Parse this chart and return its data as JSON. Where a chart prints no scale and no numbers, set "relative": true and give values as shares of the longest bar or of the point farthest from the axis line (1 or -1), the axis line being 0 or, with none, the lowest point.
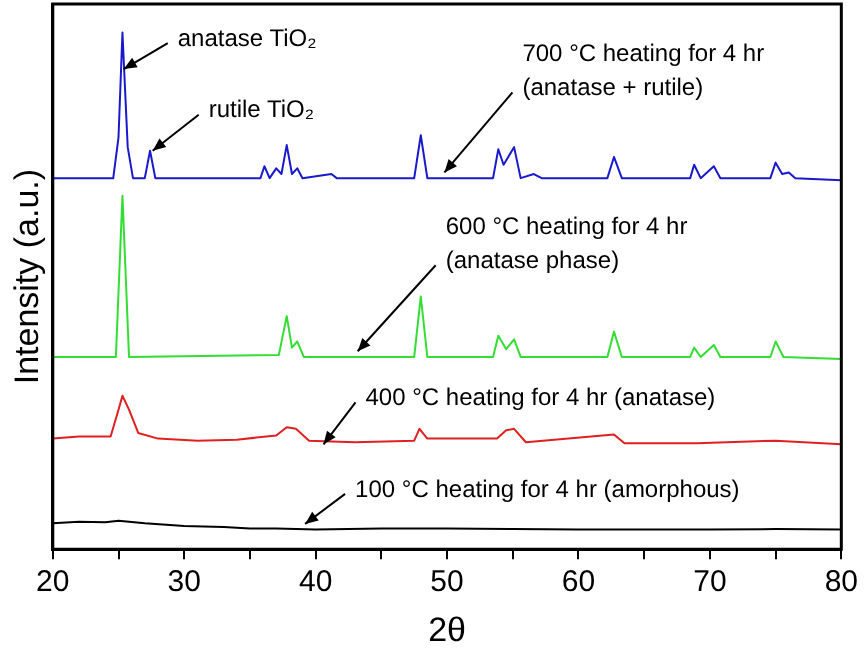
{
  "chart_data": {
    "type": "line",
    "relative": true,
    "xlabel": "2θ",
    "ylabel": "Intensity (a.u.)",
    "xlim": [
      20,
      80
    ],
    "xticks": [
      20,
      {
        "value": 25,
        "label": null
      },
      30,
      {
        "value": 35,
        "label": null
      },
      40,
      {
        "value": 45,
        "label": null
      },
      50,
      {
        "value": 55,
        "label": null
      },
      60,
      {
        "value": 65,
        "label": null
      },
      70,
      {
        "value": 75,
        "label": null
      },
      80
    ],
    "tick_labels": "x",
    "grid": false,
    "legend": false,
    "marker": "none",
    "line_style": "solid",
    "series": [
      {
        "color": "#1a1acc",
        "x": [
          20,
          24.6,
          25.0,
          25.3,
          25.7,
          26.1,
          27.0,
          27.4,
          27.8,
          35.8,
          36.1,
          36.5,
          37.0,
          37.4,
          37.8,
          38.2,
          38.6,
          39.0,
          41.2,
          41.6,
          47.5,
          48.0,
          48.5,
          53.5,
          53.9,
          54.3,
          55.1,
          55.6,
          56.6,
          57.2,
          62.2,
          62.7,
          63.3,
          68.5,
          68.8,
          69.3,
          70.3,
          70.8,
          74.6,
          75.0,
          75.5,
          76.0,
          76.5,
          80
        ],
        "values": [
          0.718,
          0.718,
          0.797,
          1.0,
          0.778,
          0.718,
          0.718,
          0.771,
          0.718,
          0.718,
          0.741,
          0.718,
          0.737,
          0.726,
          0.782,
          0.726,
          0.737,
          0.718,
          0.726,
          0.718,
          0.718,
          0.801,
          0.718,
          0.718,
          0.774,
          0.744,
          0.778,
          0.718,
          0.726,
          0.718,
          0.718,
          0.759,
          0.718,
          0.718,
          0.744,
          0.718,
          0.741,
          0.718,
          0.718,
          0.748,
          0.726,
          0.729,
          0.718,
          0.714
        ]
      },
      {
        "color": "#33dd33",
        "x": [
          20,
          24.8,
          25.3,
          25.8,
          37.2,
          37.8,
          38.2,
          38.6,
          39.1,
          47.5,
          48.0,
          48.5,
          53.5,
          53.9,
          54.5,
          55.1,
          55.6,
          62.2,
          62.7,
          63.3,
          68.5,
          68.8,
          69.3,
          70.3,
          70.8,
          74.6,
          75.0,
          75.6,
          80
        ],
        "values": [
          0.372,
          0.372,
          0.684,
          0.372,
          0.376,
          0.451,
          0.39,
          0.402,
          0.372,
          0.372,
          0.489,
          0.372,
          0.372,
          0.413,
          0.387,
          0.406,
          0.372,
          0.372,
          0.421,
          0.372,
          0.372,
          0.39,
          0.372,
          0.395,
          0.372,
          0.372,
          0.402,
          0.372,
          0.368
        ]
      },
      {
        "color": "#e02020",
        "x": [
          20,
          22,
          24.4,
          25.0,
          25.3,
          25.8,
          26.5,
          28,
          31,
          34,
          37,
          37.8,
          38.5,
          39.5,
          43,
          47.5,
          47.9,
          48.5,
          53.8,
          54.5,
          55.1,
          56,
          62.7,
          63.5,
          69,
          75,
          80
        ],
        "values": [
          0.214,
          0.218,
          0.218,
          0.27,
          0.297,
          0.27,
          0.225,
          0.214,
          0.21,
          0.212,
          0.22,
          0.236,
          0.233,
          0.21,
          0.207,
          0.21,
          0.233,
          0.214,
          0.214,
          0.23,
          0.233,
          0.207,
          0.222,
          0.205,
          0.205,
          0.21,
          0.203
        ]
      },
      {
        "color": "#000000",
        "x": [
          20,
          22,
          24,
          25,
          27,
          30,
          33,
          35,
          37,
          40,
          45,
          50,
          55,
          60,
          65,
          70,
          75,
          80
        ],
        "values": [
          0.05,
          0.053,
          0.052,
          0.055,
          0.05,
          0.045,
          0.043,
          0.04,
          0.04,
          0.038,
          0.04,
          0.04,
          0.039,
          0.038,
          0.038,
          0.038,
          0.039,
          0.038
        ]
      }
    ],
    "annotations": [
      {
        "text": "anatase TiO₂",
        "x": 25.4,
        "y": 0.929
      },
      {
        "text": "rutile TiO₂",
        "x": 27.6,
        "y": 0.771
      },
      {
        "text": "700 °C heating for 4 hr\n(anatase + rutile)",
        "x": 49.8,
        "y": 0.729
      },
      {
        "text": "600 °C heating for 4 hr\n(anatase phase)",
        "x": 43.2,
        "y": 0.383
      },
      {
        "text": "400 °C heating for 4 hr (anatase)",
        "x": 40.6,
        "y": 0.203
      },
      {
        "text": "100 °C heating for 4 hr (amorphous)",
        "x": 39.2,
        "y": 0.049
      }
    ]
  }
}
